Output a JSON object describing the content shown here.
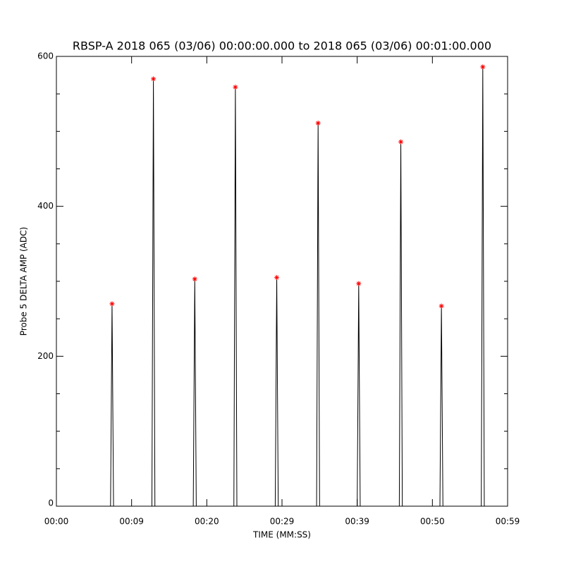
{
  "chart_data": {
    "type": "line",
    "title": "RBSP-A 2018 065 (03/06) 00:00:00.000 to 2018 065 (03/06) 00:01:00.000",
    "xlabel": "TIME (MM:SS)",
    "ylabel": "Probe 5 DELTA AMP (ADC)",
    "xlim": [
      0,
      60
    ],
    "ylim": [
      0,
      600
    ],
    "xticks": [
      {
        "value": 0,
        "label": "00:00"
      },
      {
        "value": 10,
        "label": "00:09"
      },
      {
        "value": 20,
        "label": "00:20"
      },
      {
        "value": 30,
        "label": "00:29"
      },
      {
        "value": 40,
        "label": "00:39"
      },
      {
        "value": 50,
        "label": "00:50"
      },
      {
        "value": 60,
        "label": "00:59"
      }
    ],
    "yticks": [
      0,
      200,
      400,
      600
    ],
    "yminorticks": [
      50,
      100,
      150,
      250,
      300,
      350,
      450,
      500,
      550
    ],
    "series": [
      {
        "color": "#000000",
        "marker": "none",
        "x": [
          3.0,
          7.2,
          7.4,
          7.6,
          12.7,
          12.9,
          13.1,
          18.2,
          18.4,
          18.6,
          23.6,
          23.8,
          24.0,
          29.1,
          29.3,
          29.5,
          34.6,
          34.8,
          35.0,
          40.0,
          40.2,
          40.4,
          45.6,
          45.8,
          46.0,
          51.0,
          51.2,
          51.4,
          56.5,
          56.7,
          56.9,
          58.8
        ],
        "values": [
          0,
          0,
          270,
          0,
          0,
          570,
          0,
          0,
          303,
          0,
          0,
          559,
          0,
          0,
          305,
          0,
          0,
          511,
          0,
          0,
          297,
          0,
          0,
          486,
          0,
          0,
          267,
          0,
          0,
          586,
          0,
          0
        ]
      },
      {
        "color": "#ff0000",
        "marker": "*",
        "x": [
          7.4,
          12.9,
          18.4,
          23.8,
          29.3,
          34.8,
          40.2,
          45.8,
          51.2,
          56.7
        ],
        "values": [
          270,
          570,
          303,
          559,
          305,
          511,
          297,
          486,
          267,
          586
        ]
      }
    ]
  }
}
